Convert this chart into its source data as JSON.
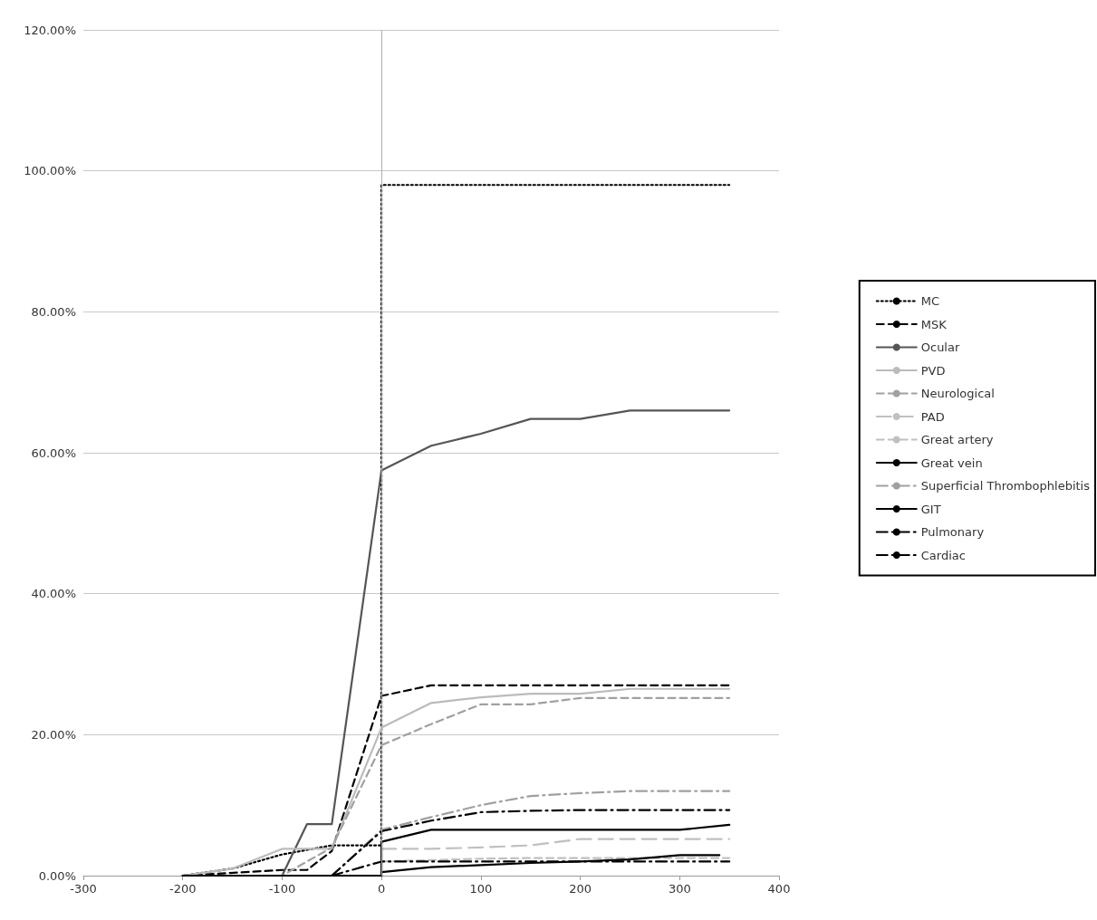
{
  "chart_data": {
    "type": "line",
    "xlim": [
      -300,
      400
    ],
    "xticks": [
      -300,
      -200,
      -100,
      0,
      100,
      200,
      300,
      400
    ],
    "ylim": [
      0,
      120
    ],
    "yticks": [
      {
        "value": 0,
        "label": "0.00%"
      },
      {
        "value": 20,
        "label": "20.00%"
      },
      {
        "value": 40,
        "label": "40.00%"
      },
      {
        "value": 60,
        "label": "60.00%"
      },
      {
        "value": 80,
        "label": "80.00%"
      },
      {
        "value": 100,
        "label": "100.00%"
      },
      {
        "value": 120,
        "label": "120.00%"
      }
    ],
    "grid": "y",
    "legend": "right",
    "marker": "none",
    "ref_lines": [
      {
        "axis": "x",
        "value": 0,
        "color": "#b0b0b0"
      }
    ],
    "series": [
      {
        "name": "MC",
        "color": "#000000",
        "line_style": "dotted",
        "x": [
          -200,
          -150,
          -100,
          -50,
          0,
          0,
          50,
          100,
          150,
          200,
          250,
          300,
          350
        ],
        "values": [
          0,
          1,
          3,
          4.3,
          4.3,
          98,
          98,
          98,
          98,
          98,
          98,
          98,
          98
        ]
      },
      {
        "name": "MSK",
        "color": "#000000",
        "line_style": "dashed",
        "x": [
          -200,
          -100,
          -75,
          -50,
          0,
          50,
          100,
          150,
          200,
          250,
          300,
          350
        ],
        "values": [
          0,
          0.8,
          0.8,
          3.5,
          25.5,
          27,
          27,
          27,
          27,
          27,
          27,
          27
        ]
      },
      {
        "name": "Ocular",
        "color": "#555555",
        "line_style": "solid",
        "x": [
          -200,
          -100,
          -75,
          -50,
          0,
          50,
          100,
          150,
          200,
          250,
          300,
          350
        ],
        "values": [
          0,
          0,
          7.3,
          7.3,
          57.5,
          61,
          62.7,
          64.8,
          64.8,
          66,
          66,
          66
        ]
      },
      {
        "name": "PVD",
        "color": "#bbbbbb",
        "line_style": "solid",
        "x": [
          -200,
          -150,
          -100,
          -50,
          0,
          50,
          100,
          150,
          200,
          250,
          300,
          350
        ],
        "values": [
          0,
          1,
          3.8,
          3.8,
          21,
          24.5,
          25.3,
          25.8,
          25.8,
          26.5,
          26.5,
          26.5
        ]
      },
      {
        "name": "Neurological",
        "color": "#a0a0a0",
        "line_style": "dashed",
        "x": [
          -200,
          -100,
          -50,
          0,
          50,
          100,
          150,
          200,
          250,
          300,
          350
        ],
        "values": [
          0,
          0,
          4,
          18.5,
          21.5,
          24.3,
          24.3,
          25.2,
          25.2,
          25.2,
          25.2
        ]
      },
      {
        "name": "PAD",
        "color": "#c0c0c0",
        "line_style": "longdash",
        "x": [
          0,
          50,
          100,
          150,
          200,
          250,
          300,
          350
        ],
        "values": [
          3.8,
          3.8,
          4,
          4.3,
          5.2,
          5.2,
          5.2,
          5.2
        ]
      },
      {
        "name": "Great artery",
        "color": "#c0c0c0",
        "line_style": "dashed",
        "x": [
          0,
          50,
          100,
          150,
          200,
          250,
          300,
          350
        ],
        "values": [
          2,
          2.2,
          2.4,
          2.5,
          2.5,
          2.5,
          2.5,
          2.5
        ]
      },
      {
        "name": "Great vein",
        "color": "#000000",
        "line_style": "solid",
        "x": [
          -200,
          -100,
          0,
          0,
          50,
          100,
          150,
          200,
          250,
          300,
          350
        ],
        "values": [
          0,
          0,
          0,
          4.8,
          6.5,
          6.5,
          6.5,
          6.5,
          6.5,
          6.5,
          7.2
        ]
      },
      {
        "name": "Superficial Thrombophlebitis",
        "color": "#a0a0a0",
        "line_style": "dashdot",
        "x": [
          -50,
          0,
          50,
          100,
          150,
          200,
          250,
          300,
          350
        ],
        "values": [
          0,
          6.5,
          8.3,
          10,
          11.3,
          11.7,
          12,
          12,
          12
        ]
      },
      {
        "name": "GIT",
        "color": "#000000",
        "line_style": "solid",
        "x": [
          0,
          50,
          100,
          150,
          200,
          250,
          300,
          340
        ],
        "values": [
          0.5,
          1.2,
          1.5,
          1.8,
          2,
          2.3,
          2.9,
          2.9
        ]
      },
      {
        "name": "Pulmonary",
        "color": "#000000",
        "line_style": "dashdot",
        "x": [
          -50,
          0,
          50,
          100,
          150,
          200,
          250,
          300,
          350
        ],
        "values": [
          0,
          6.3,
          7.8,
          9,
          9.2,
          9.3,
          9.3,
          9.3,
          9.3
        ]
      },
      {
        "name": "Cardiac",
        "color": "#000000",
        "line_style": "dashdot",
        "x": [
          -50,
          0,
          50,
          100,
          150,
          200,
          250,
          300,
          350
        ],
        "values": [
          0,
          2,
          2,
          2,
          2,
          2,
          2,
          2,
          2
        ]
      }
    ]
  }
}
